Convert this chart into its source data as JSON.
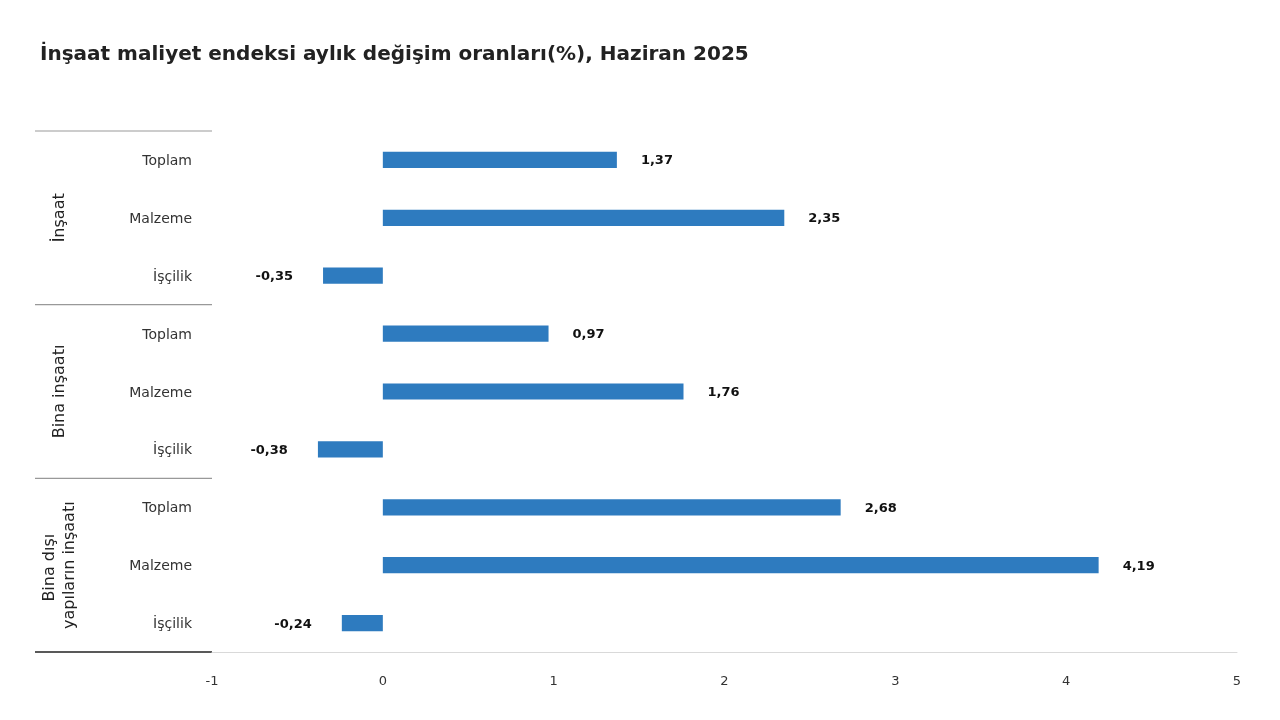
{
  "chart_data": {
    "type": "bar",
    "orientation": "horizontal",
    "title": "İnşaat maliyet endeksi aylık değişim oranları(%), Haziran 2025",
    "categories": [
      "Toplam",
      "Malzeme",
      "İşçilik",
      "Toplam",
      "Malzeme",
      "İşçilik",
      "Toplam",
      "Malzeme",
      "İşçilik"
    ],
    "values": [
      1.37,
      2.35,
      -0.35,
      0.97,
      1.76,
      -0.38,
      2.68,
      4.19,
      -0.24
    ],
    "value_labels": [
      "1,37",
      "2,35",
      "-0,35",
      "0,97",
      "1,76",
      "-0,38",
      "2,68",
      "4,19",
      "-0,24"
    ],
    "color": "#2e7bbf",
    "xlim": [
      -1,
      5
    ],
    "xticks": [
      -1,
      0,
      1,
      2,
      3,
      4,
      5
    ],
    "annotations": [
      "İnşaat",
      "Bina inşaatı",
      "Bina dışı yapıların inşaatı"
    ],
    "grid": false
  }
}
